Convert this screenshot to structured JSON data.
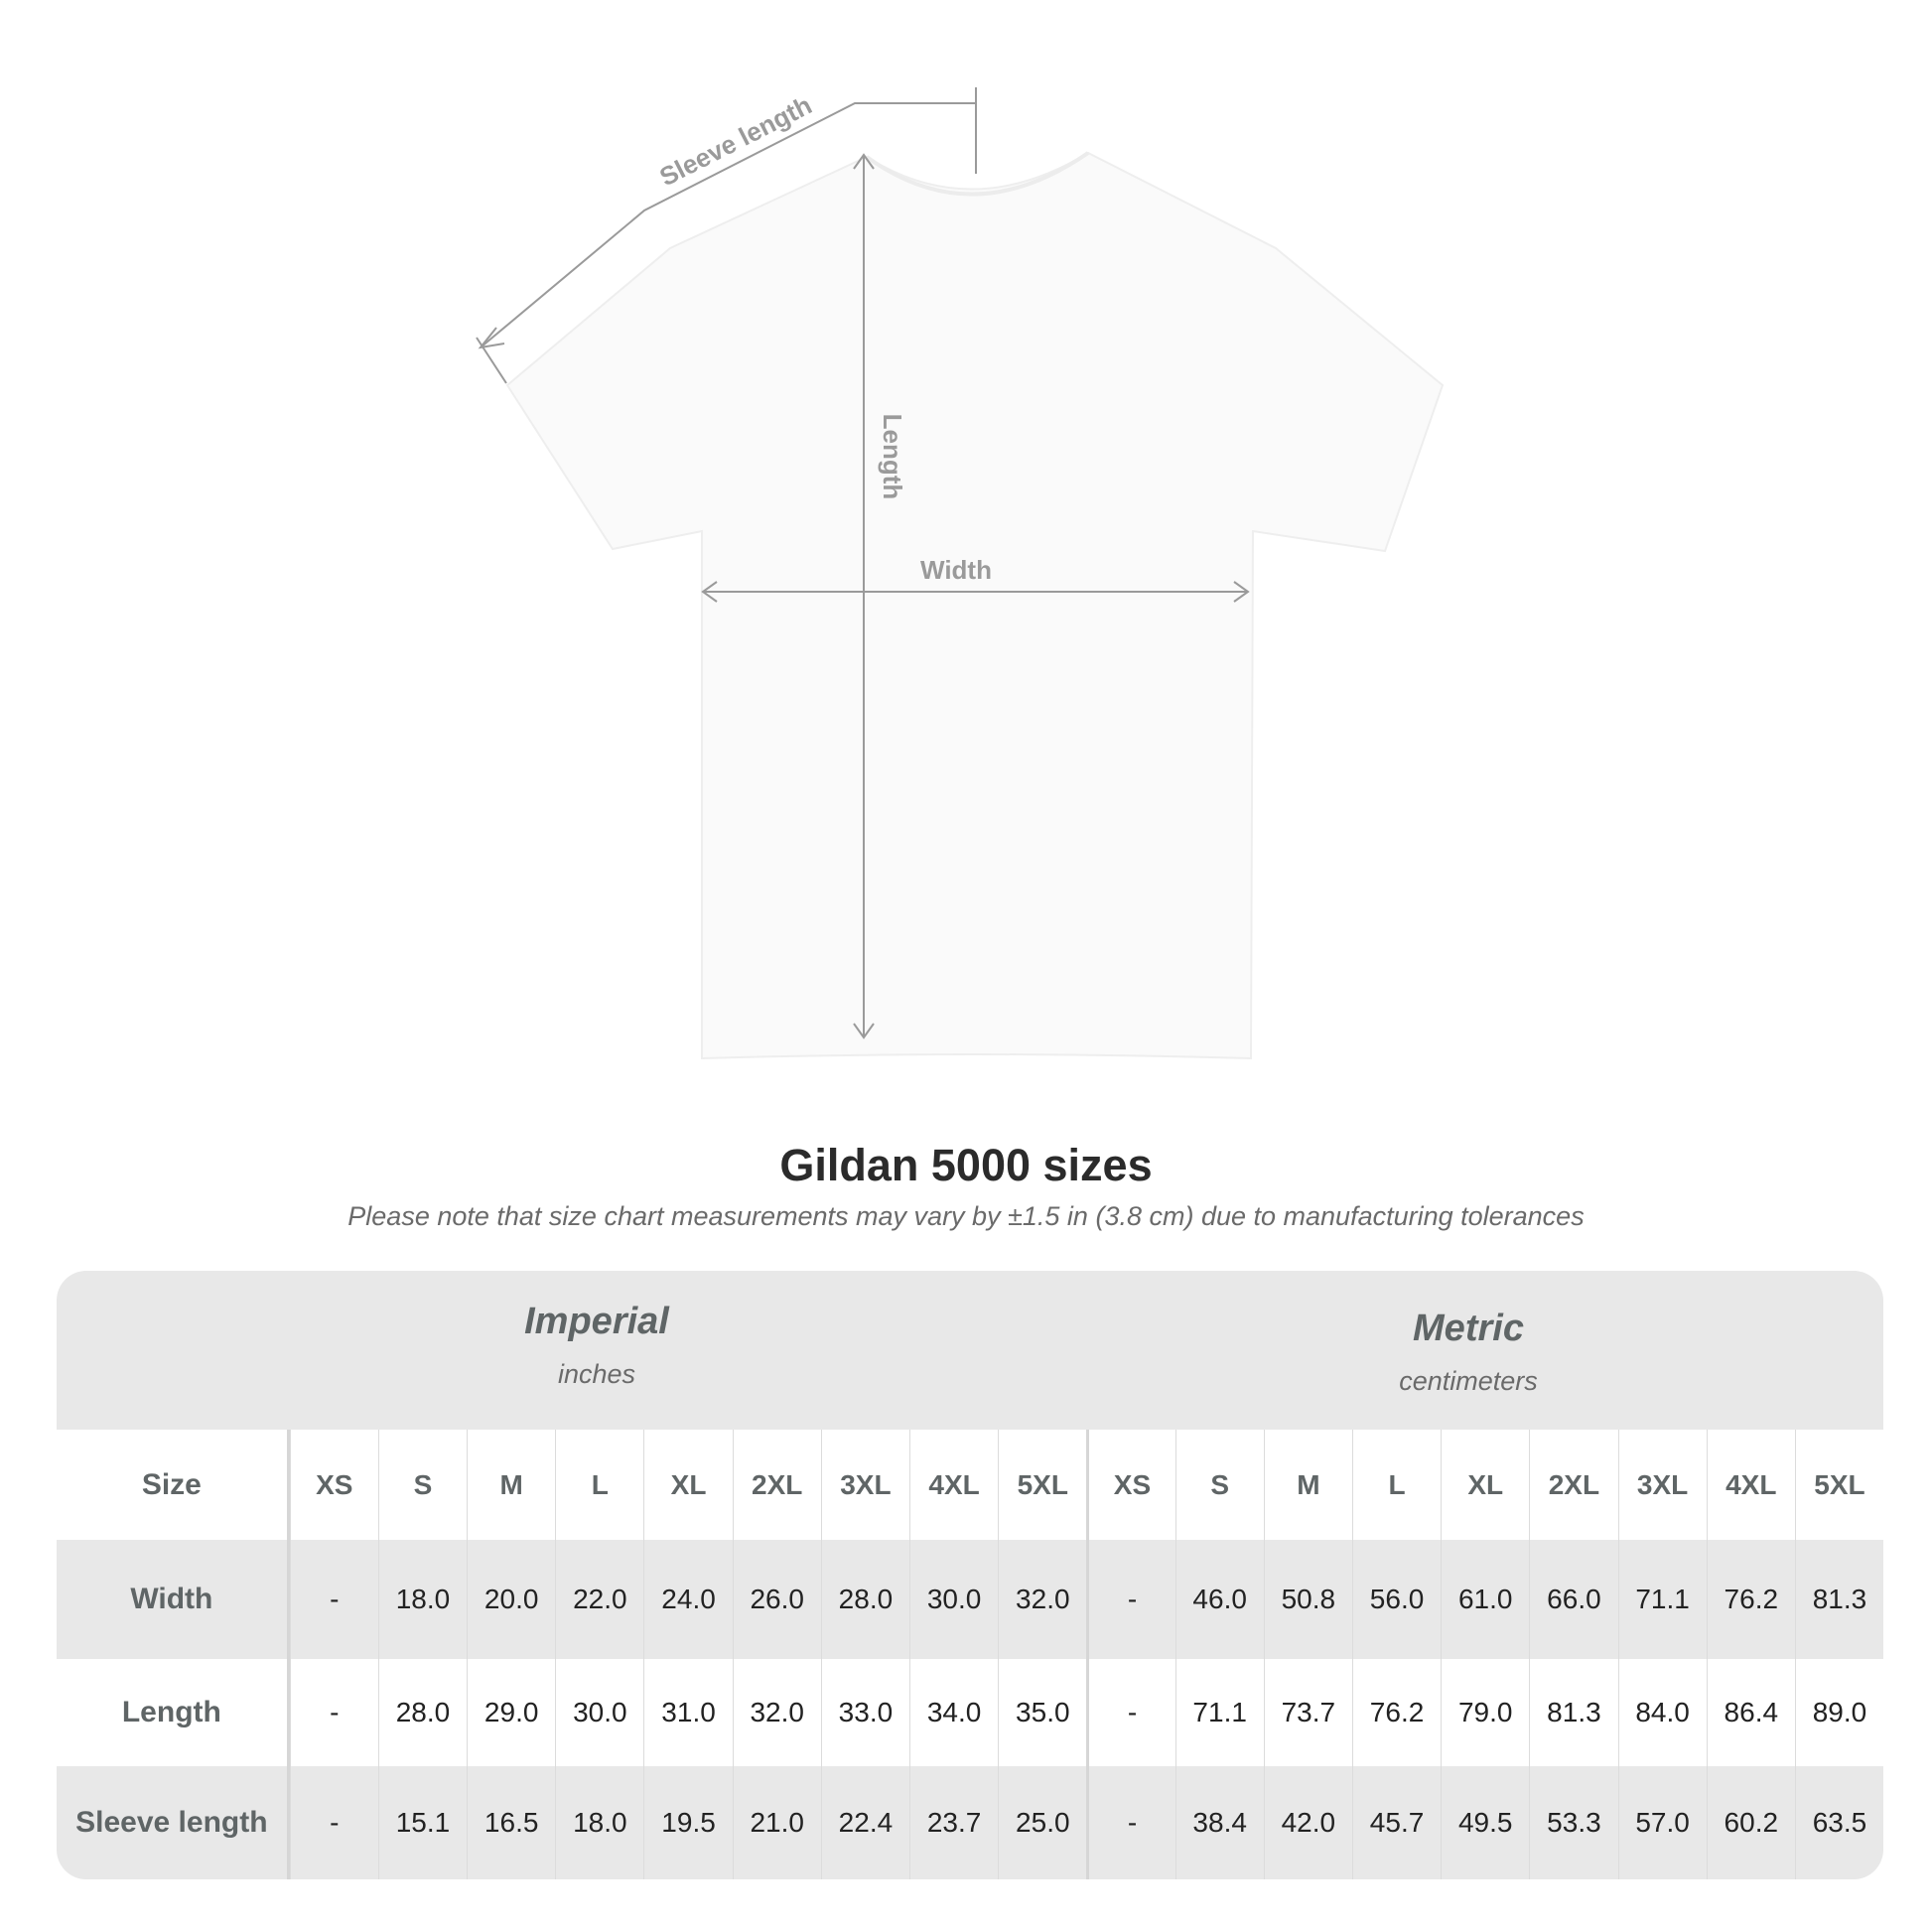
{
  "diagram": {
    "labels": {
      "sleeve": "Sleeve length",
      "length": "Length",
      "width": "Width"
    },
    "shirt_color": "#fafafa",
    "line_color": "#9a9a9a"
  },
  "title": "Gildan 5000 sizes",
  "subtitle": "Please note that size chart measurements may vary by ±1.5 in (3.8 cm) due to manufacturing tolerances",
  "table": {
    "imperial": {
      "name": "Imperial",
      "unit": "inches"
    },
    "metric": {
      "name": "Metric",
      "unit": "centimeters"
    },
    "size_label": "Size",
    "sizes": [
      "XS",
      "S",
      "M",
      "L",
      "XL",
      "2XL",
      "3XL",
      "4XL",
      "5XL"
    ],
    "rows": [
      {
        "label": "Width",
        "imperial": [
          "-",
          "18.0",
          "20.0",
          "22.0",
          "24.0",
          "26.0",
          "28.0",
          "30.0",
          "32.0"
        ],
        "metric": [
          "-",
          "46.0",
          "50.8",
          "56.0",
          "61.0",
          "66.0",
          "71.1",
          "76.2",
          "81.3"
        ]
      },
      {
        "label": "Length",
        "imperial": [
          "-",
          "28.0",
          "29.0",
          "30.0",
          "31.0",
          "32.0",
          "33.0",
          "34.0",
          "35.0"
        ],
        "metric": [
          "-",
          "71.1",
          "73.7",
          "76.2",
          "79.0",
          "81.3",
          "84.0",
          "86.4",
          "89.0"
        ]
      },
      {
        "label": "Sleeve length",
        "imperial": [
          "-",
          "15.1",
          "16.5",
          "18.0",
          "19.5",
          "21.0",
          "22.4",
          "23.7",
          "25.0"
        ],
        "metric": [
          "-",
          "38.4",
          "42.0",
          "45.7",
          "49.5",
          "53.3",
          "57.0",
          "60.2",
          "63.5"
        ]
      }
    ]
  }
}
